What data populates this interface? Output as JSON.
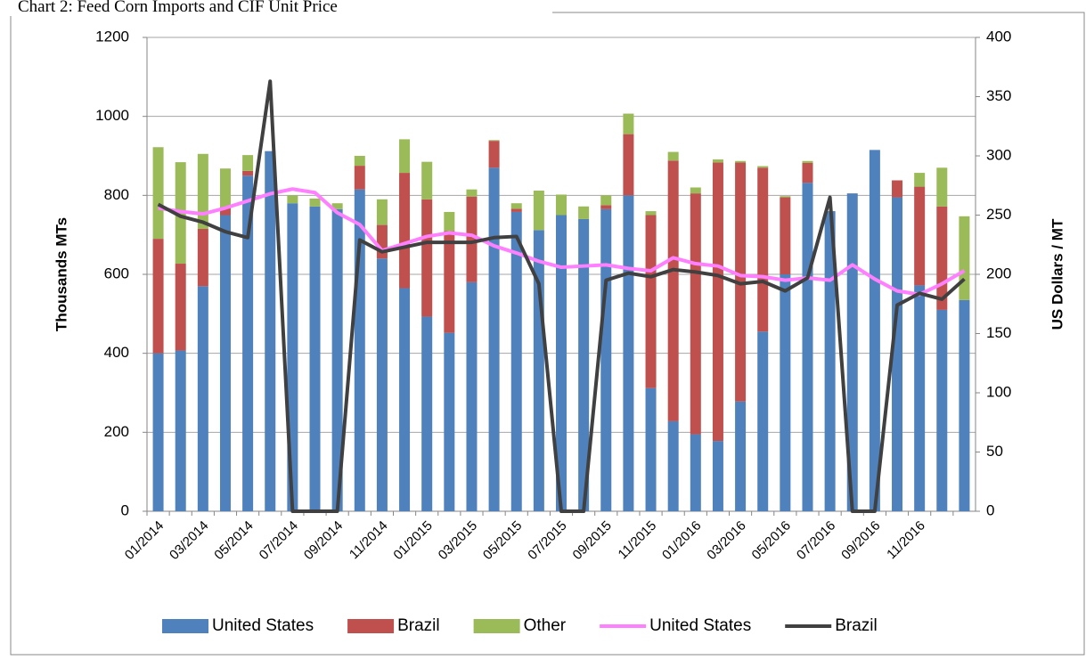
{
  "chart_data": {
    "type": "bar",
    "stacked": true,
    "title": "Chart 2: Feed Corn Imports and CIF Unit Price",
    "y_label": "Thousands MTs",
    "y2_label": "US Dollars / MT",
    "categories": [
      "01/2014",
      null,
      "03/2014",
      null,
      "05/2014",
      null,
      "07/2014",
      null,
      "09/2014",
      null,
      "11/2014",
      null,
      "01/2015",
      null,
      "03/2015",
      null,
      "05/2015",
      null,
      "07/2015",
      null,
      "09/2015",
      null,
      "11/2015",
      null,
      "01/2016",
      null,
      "03/2016",
      null,
      "05/2016",
      null,
      "07/2016",
      null,
      "09/2016",
      null,
      "11/2016",
      null,
      null
    ],
    "ylim": [
      0,
      1200
    ],
    "yticks": [
      0,
      200,
      400,
      600,
      800,
      1000,
      1200
    ],
    "y2lim": [
      0,
      400
    ],
    "y2ticks": [
      0,
      50,
      100,
      150,
      200,
      250,
      300,
      350,
      400
    ],
    "grid": true,
    "legend": "bottom",
    "series": [
      {
        "name": "United States",
        "type": "bar",
        "color": "#4f81bd",
        "values": [
          400,
          407,
          570,
          750,
          850,
          912,
          780,
          772,
          765,
          815,
          640,
          565,
          493,
          452,
          580,
          870,
          758,
          712,
          750,
          740,
          765,
          800,
          312,
          228,
          195,
          178,
          278,
          455,
          600,
          832,
          760,
          805,
          915,
          795,
          572,
          510,
          535
        ]
      },
      {
        "name": "Brazil",
        "type": "bar",
        "color": "#c0504d",
        "values": [
          290,
          220,
          145,
          20,
          12,
          0,
          0,
          0,
          0,
          60,
          85,
          292,
          297,
          258,
          217,
          68,
          8,
          0,
          0,
          0,
          10,
          155,
          438,
          660,
          610,
          705,
          605,
          415,
          195,
          50,
          0,
          0,
          0,
          43,
          250,
          262,
          0
        ]
      },
      {
        "name": "Other",
        "type": "bar",
        "color": "#9bbb59",
        "values": [
          232,
          257,
          190,
          98,
          40,
          0,
          20,
          20,
          15,
          25,
          65,
          85,
          95,
          48,
          18,
          2,
          14,
          100,
          52,
          32,
          25,
          52,
          10,
          22,
          15,
          8,
          4,
          4,
          3,
          5,
          0,
          0,
          0,
          0,
          35,
          98,
          212
        ]
      },
      {
        "name": "United States",
        "type": "line",
        "axis": "y2",
        "color": "#ff80ff",
        "values": [
          256,
          253,
          251,
          256,
          262,
          268,
          272,
          269,
          252,
          242,
          220,
          226,
          232,
          235,
          233,
          224,
          218,
          211,
          206,
          207,
          208,
          205,
          203,
          214,
          209,
          207,
          199,
          198,
          195,
          197,
          195,
          208,
          196,
          186,
          183,
          192,
          203
        ]
      },
      {
        "name": "Brazil",
        "type": "line",
        "axis": "y2",
        "color": "#404040",
        "values": [
          259,
          249,
          244,
          236,
          231,
          363,
          0,
          0,
          0,
          229,
          219,
          223,
          227,
          227,
          227,
          231,
          232,
          192,
          0,
          0,
          195,
          201,
          198,
          204,
          202,
          199,
          192,
          194,
          186,
          197,
          265,
          0,
          0,
          174,
          184,
          179,
          196
        ]
      }
    ]
  }
}
